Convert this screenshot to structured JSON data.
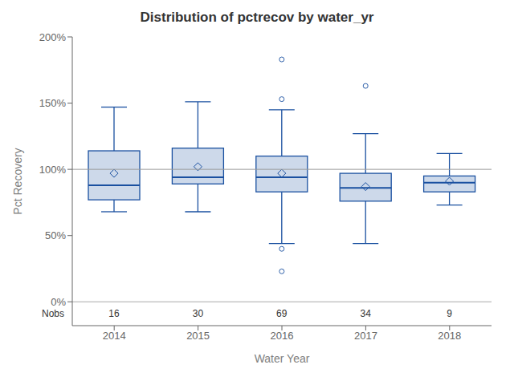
{
  "chart_data": {
    "type": "box",
    "title": "Distribution of pctrecov by water_yr",
    "x_label": "Water Year",
    "y_label": "Pct Recovery",
    "categories": [
      "2014",
      "2015",
      "2016",
      "2017",
      "2018"
    ],
    "q1": [
      77,
      89,
      83,
      76,
      83
    ],
    "median": [
      88,
      94,
      94,
      86,
      90
    ],
    "q3": [
      114,
      116,
      110,
      97,
      95
    ],
    "mean": [
      97,
      102,
      97,
      87,
      91
    ],
    "whislo": [
      68,
      68,
      44,
      44,
      73
    ],
    "whishi": [
      147,
      151,
      145,
      127,
      112
    ],
    "fliers": [
      [],
      [],
      [
        153,
        40,
        183,
        23
      ],
      [
        163
      ],
      []
    ],
    "nobs": [
      16,
      30,
      69,
      34,
      9
    ],
    "nobs_label": "Nobs",
    "reference_line": 100,
    "color": "#1a50a0",
    "ylim": [
      -18,
      200
    ],
    "yticks": [
      {
        "value": 0,
        "label": "0%"
      },
      {
        "value": 50,
        "label": "50%"
      },
      {
        "value": 100,
        "label": "100%"
      },
      {
        "value": 150,
        "label": "150%"
      },
      {
        "value": 200,
        "label": "200%"
      }
    ],
    "grid": false
  }
}
